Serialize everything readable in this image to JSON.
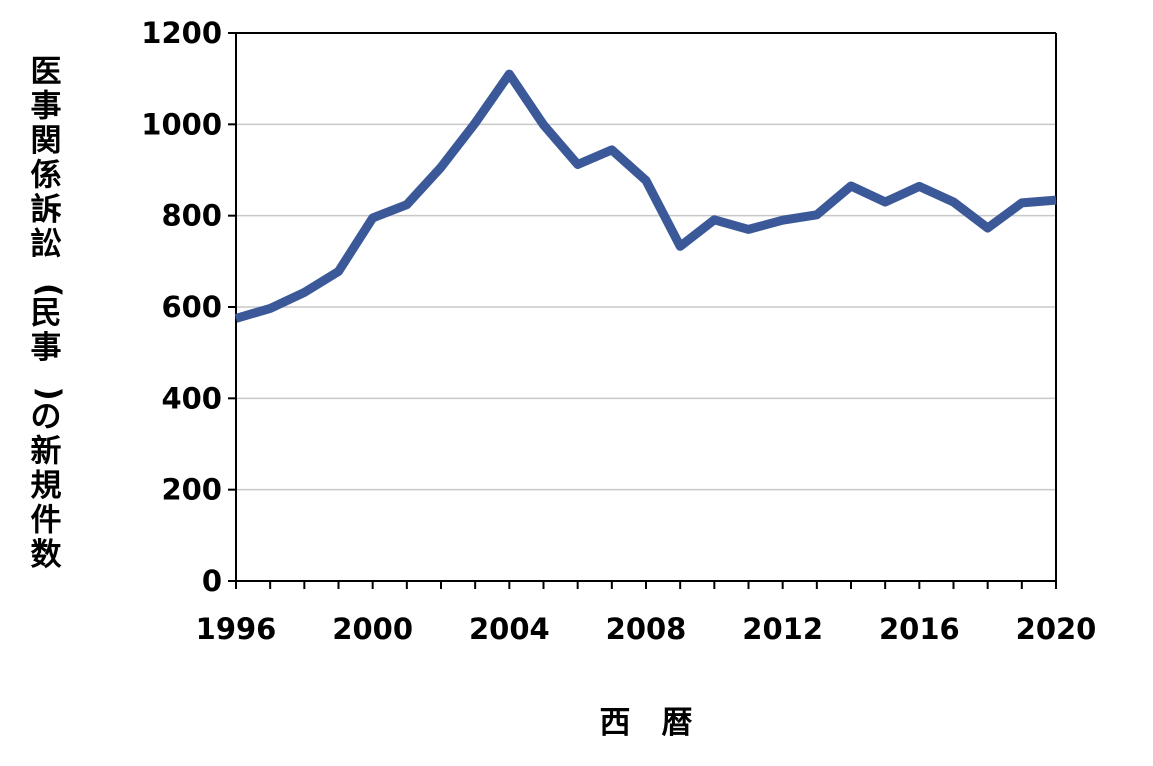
{
  "chart_data": {
    "type": "line",
    "title": "",
    "xlabel": "西　暦",
    "ylabel": "医事関係訴訟(民事)の新規件数",
    "xlim": [
      1996,
      2020
    ],
    "ylim": [
      0,
      1200
    ],
    "xticks": [
      "1996",
      "2000",
      "2004",
      "2008",
      "2012",
      "2016",
      "2020"
    ],
    "yticks": [
      "0",
      "200",
      "400",
      "600",
      "800",
      "1000",
      "1200"
    ],
    "grid": true,
    "legend": "none",
    "series": [
      {
        "color": "#3B5998",
        "x": [
          1996,
          1997,
          1998,
          1999,
          2000,
          2001,
          2002,
          2003,
          2004,
          2005,
          2006,
          2007,
          2008,
          2009,
          2010,
          2011,
          2012,
          2013,
          2014,
          2015,
          2016,
          2017,
          2018,
          2019,
          2020
        ],
        "values": [
          575,
          597,
          632,
          678,
          795,
          824,
          906,
          1003,
          1110,
          999,
          912,
          944,
          877,
          733,
          791,
          770,
          790,
          802,
          865,
          830,
          864,
          830,
          773,
          828,
          834
        ]
      }
    ]
  }
}
